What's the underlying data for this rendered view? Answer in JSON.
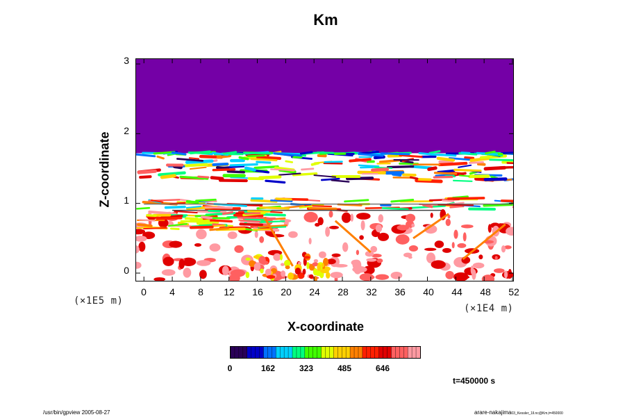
{
  "chart_data": {
    "type": "heatmap",
    "title": "Km",
    "xlabel": "X-coordinate",
    "ylabel": "Z-coordinate",
    "x_unit": "(×1E4 m)",
    "y_unit": "(×1E5 m)",
    "x_ticks": [
      "0",
      "4",
      "8",
      "12",
      "16",
      "20",
      "24",
      "28",
      "32",
      "36",
      "40",
      "44",
      "48",
      "52"
    ],
    "y_ticks": [
      "0",
      "1",
      "2",
      "3"
    ],
    "xlim": [
      -1.2,
      52.2
    ],
    "ylim": [
      -0.12,
      3.08
    ],
    "colorbar": {
      "ticks": [
        "0",
        "162",
        "323",
        "485",
        "646"
      ],
      "range": [
        0,
        810
      ]
    },
    "regions": [
      {
        "name": "upper-uniform",
        "z_range": [
          1.72,
          3.08
        ],
        "value": 0
      },
      {
        "name": "turbulent-layer",
        "z_range": [
          1.3,
          1.72
        ],
        "value_range": [
          0,
          810
        ]
      },
      {
        "name": "mid-band",
        "z_range": [
          0.9,
          1.1
        ],
        "value_range": [
          0,
          810
        ]
      },
      {
        "name": "lower-layer",
        "z_range": [
          -0.12,
          0.9
        ],
        "value_range": [
          0,
          700
        ]
      }
    ],
    "annotation": "t=450000 s"
  },
  "footer": {
    "left": "/usr/bin/gpview 2005-08-27",
    "right_main": "arare-nakajima",
    "right_small": "03_Kessler_1ll.nc@Km,t=450000"
  },
  "colors": {
    "upper_uniform": "#7400a6",
    "background": "#ffffff",
    "colormap": [
      "#2a0058",
      "#0000c8",
      "#0070ff",
      "#00d0ff",
      "#00ff80",
      "#40ff00",
      "#e0ff00",
      "#ffd000",
      "#ff8000",
      "#ff2000",
      "#e00000",
      "#ff6060",
      "#ff9aa2"
    ]
  }
}
